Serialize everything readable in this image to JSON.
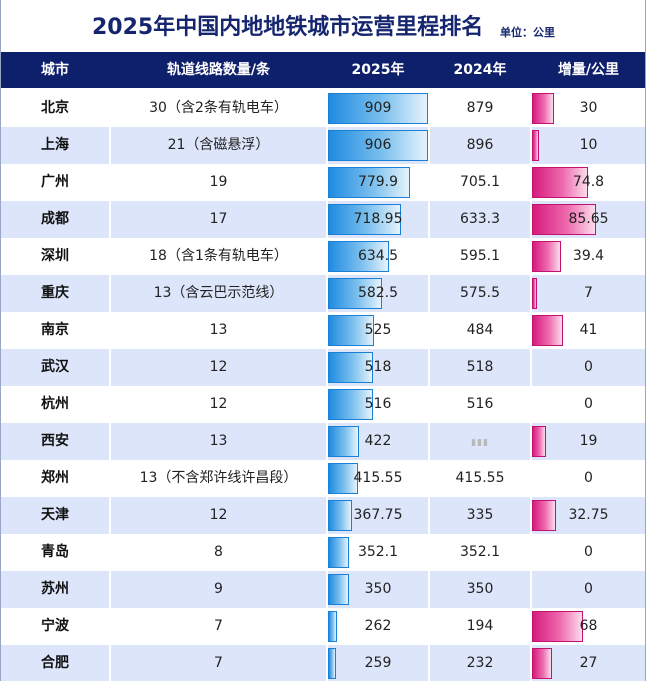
{
  "title": "2025年中国内地地铁城市运营里程排名",
  "unit": "单位：公里",
  "columns": [
    "城市",
    "轨道线路数量/条",
    "2025年",
    "2024年",
    "增量/公里"
  ],
  "colors": {
    "header_bg": "#0e1f6b",
    "title": "#15266e",
    "bar_blue": "#1f8be0",
    "bar_pink": "#d61b7e",
    "row_alt": "#dde5fb"
  },
  "rows": [
    {
      "city": "北京",
      "lines": "30（含2条有轨电车）",
      "y2025": "909",
      "y2024": "879",
      "increase": "30"
    },
    {
      "city": "上海",
      "lines": "21（含磁悬浮）",
      "y2025": "906",
      "y2024": "896",
      "increase": "10"
    },
    {
      "city": "广州",
      "lines": "19",
      "y2025": "779.9",
      "y2024": "705.1",
      "increase": "74.8"
    },
    {
      "city": "成都",
      "lines": "17",
      "y2025": "718.95",
      "y2024": "633.3",
      "increase": "85.65"
    },
    {
      "city": "深圳",
      "lines": "18（含1条有轨电车）",
      "y2025": "634.5",
      "y2024": "595.1",
      "increase": "39.4"
    },
    {
      "city": "重庆",
      "lines": "13（含云巴示范线）",
      "y2025": "582.5",
      "y2024": "575.5",
      "increase": "7"
    },
    {
      "city": "南京",
      "lines": "13",
      "y2025": "525",
      "y2024": "484",
      "increase": "41"
    },
    {
      "city": "武汉",
      "lines": "12",
      "y2025": "518",
      "y2024": "518",
      "increase": "0"
    },
    {
      "city": "杭州",
      "lines": "12",
      "y2025": "516",
      "y2024": "516",
      "increase": "0"
    },
    {
      "city": "西安",
      "lines": "13",
      "y2025": "422",
      "y2024": "",
      "increase": "19"
    },
    {
      "city": "郑州",
      "lines": "13（不含郑许线许昌段）",
      "y2025": "415.55",
      "y2024": "415.55",
      "increase": "0"
    },
    {
      "city": "天津",
      "lines": "12",
      "y2025": "367.75",
      "y2024": "335",
      "increase": "32.75"
    },
    {
      "city": "青岛",
      "lines": "8",
      "y2025": "352.1",
      "y2024": "352.1",
      "increase": "0"
    },
    {
      "city": "苏州",
      "lines": "9",
      "y2025": "350",
      "y2024": "350",
      "increase": "0"
    },
    {
      "city": "宁波",
      "lines": "7",
      "y2025": "262",
      "y2024": "194",
      "increase": "68"
    },
    {
      "city": "合肥",
      "lines": "7",
      "y2025": "259",
      "y2024": "232",
      "increase": "27"
    }
  ],
  "chart_data": {
    "type": "table",
    "title": "2025年中国内地地铁城市运营里程排名",
    "unit": "单位：公里",
    "categories": [
      "北京",
      "上海",
      "广州",
      "成都",
      "深圳",
      "重庆",
      "南京",
      "武汉",
      "杭州",
      "西安",
      "郑州",
      "天津",
      "青岛",
      "苏州",
      "宁波",
      "合肥"
    ],
    "series": [
      {
        "name": "2025年",
        "values": [
          909,
          906,
          779.9,
          718.95,
          634.5,
          582.5,
          525,
          518,
          516,
          422,
          415.55,
          367.75,
          352.1,
          350,
          262,
          259
        ]
      },
      {
        "name": "2024年",
        "values": [
          879,
          896,
          705.1,
          633.3,
          595.1,
          575.5,
          484,
          518,
          516,
          null,
          415.55,
          335,
          352.1,
          350,
          194,
          232
        ]
      },
      {
        "name": "增量/公里",
        "values": [
          30,
          10,
          74.8,
          85.65,
          39.4,
          7,
          41,
          0,
          0,
          19,
          0,
          32.75,
          0,
          0,
          68,
          27
        ]
      }
    ],
    "bar_range_2025": [
      200,
      909
    ],
    "bar_range_increase": [
      0,
      85.65
    ]
  }
}
